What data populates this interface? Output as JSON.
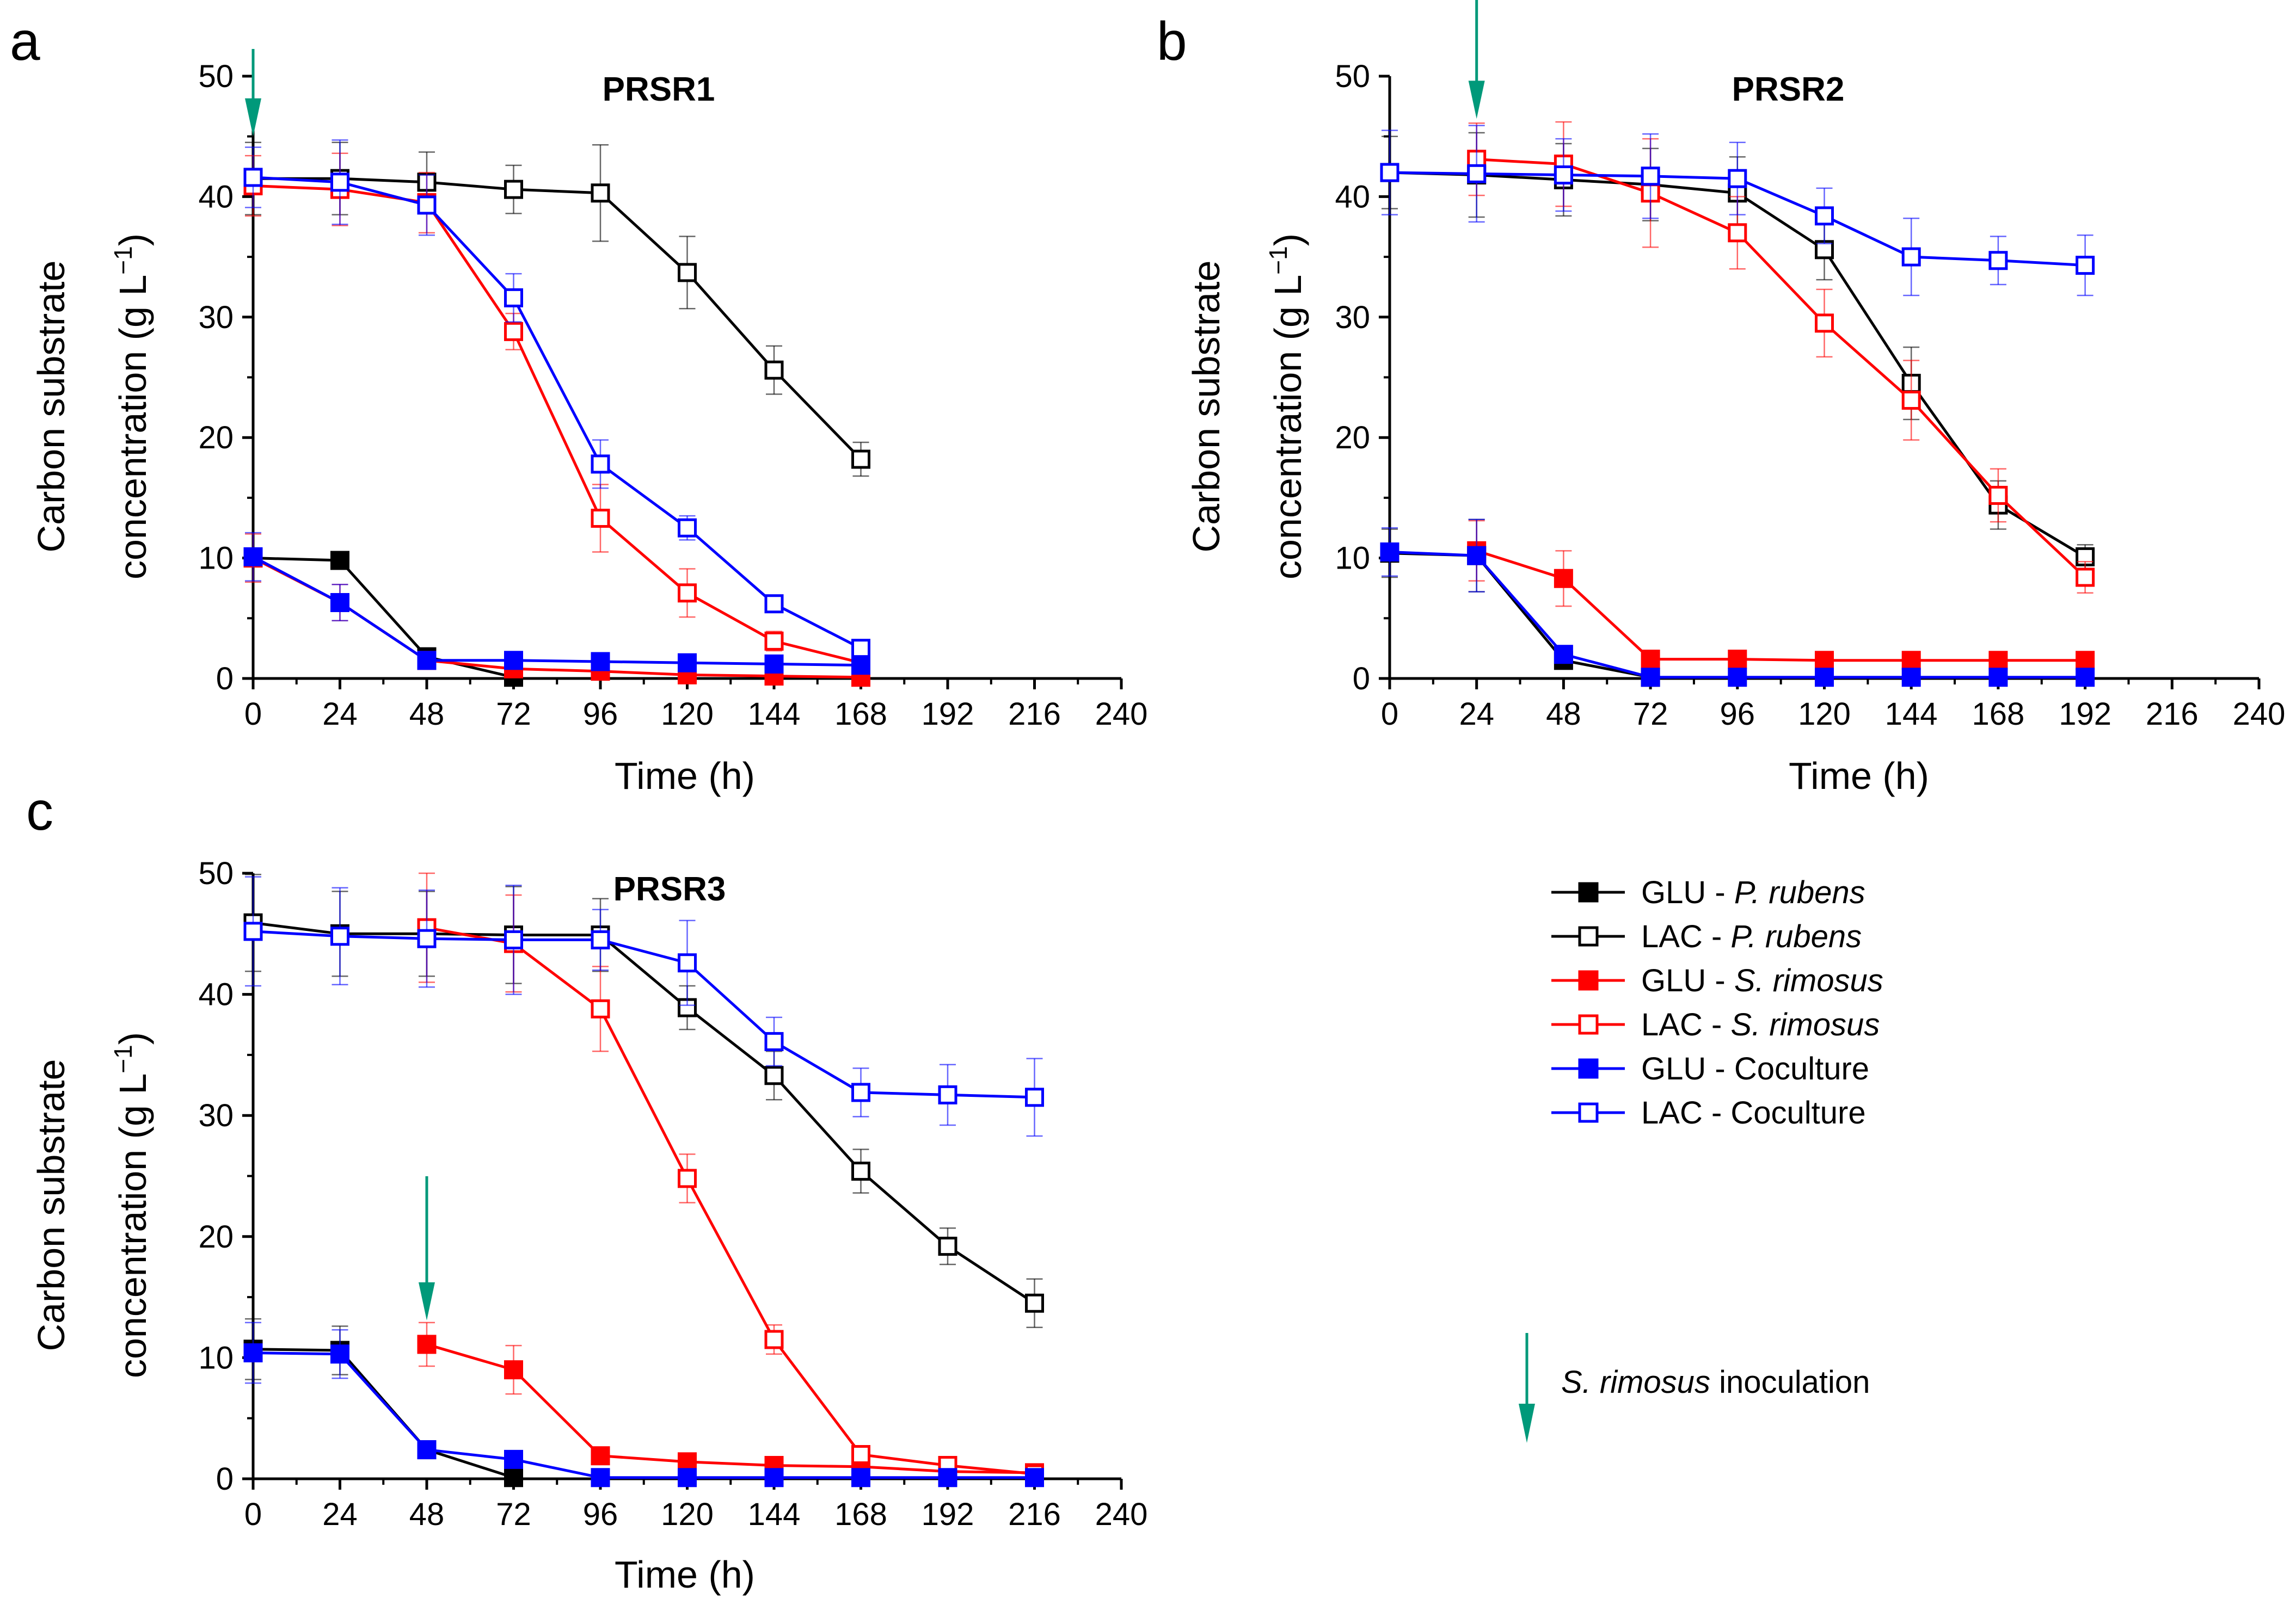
{
  "colors": {
    "p_rubens": "#000000",
    "s_rimosus": "#ff0000",
    "coculture": "#0000ff",
    "inoculation_arrow": "#00997a"
  },
  "legend": {
    "items": [
      {
        "prefix": "GLU - ",
        "name": "P. rubens",
        "italic": true,
        "filled": true,
        "color": "#000000"
      },
      {
        "prefix": "LAC - ",
        "name": "P. rubens",
        "italic": true,
        "filled": false,
        "color": "#000000"
      },
      {
        "prefix": "GLU - ",
        "name": "S. rimosus",
        "italic": true,
        "filled": true,
        "color": "#ff0000"
      },
      {
        "prefix": "LAC - ",
        "name": "S. rimosus",
        "italic": true,
        "filled": false,
        "color": "#ff0000"
      },
      {
        "prefix": "GLU - ",
        "name": "Coculture",
        "italic": false,
        "filled": true,
        "color": "#0000ff"
      },
      {
        "prefix": "LAC - ",
        "name": "Coculture",
        "italic": false,
        "filled": false,
        "color": "#0000ff"
      }
    ],
    "inoculation_italic": "S. rimosus",
    "inoculation_text": " inoculation"
  },
  "chart_data": [
    {
      "panel": "a",
      "type": "line",
      "title": "PRSR1",
      "xlabel": "Time (h)",
      "ylabel_line1": "Carbon substrate",
      "ylabel_line2_prefix": "concentration (g L",
      "ylabel_sup": "−1",
      "ylabel_suffix": ")",
      "xlim": [
        0,
        240
      ],
      "ylim": [
        0,
        50
      ],
      "xticks": [
        0,
        24,
        48,
        72,
        96,
        120,
        144,
        168,
        192,
        216,
        240
      ],
      "yticks": [
        0,
        10,
        20,
        30,
        40,
        50
      ],
      "inoculation_time": 0,
      "series": [
        {
          "name": "GLU - P. rubens",
          "color": "#000000",
          "filled": true,
          "x": [
            0,
            24,
            48,
            72
          ],
          "values": [
            10.0,
            9.8,
            1.8,
            0.1
          ],
          "errors": [
            0.6,
            0.7,
            0.3,
            0.1
          ]
        },
        {
          "name": "LAC - P. rubens",
          "color": "#000000",
          "filled": false,
          "x": [
            0,
            24,
            48,
            72,
            96,
            120,
            144,
            168
          ],
          "values": [
            41.5,
            41.5,
            41.2,
            40.6,
            40.3,
            33.7,
            25.6,
            18.2
          ],
          "errors": [
            3.0,
            3.0,
            2.5,
            2.0,
            4.0,
            3.0,
            2.0,
            1.4
          ]
        },
        {
          "name": "GLU - S. rimosus",
          "color": "#ff0000",
          "filled": true,
          "x": [
            0,
            24,
            48,
            72,
            96,
            120,
            144,
            168
          ],
          "values": [
            10.0,
            6.3,
            1.5,
            0.8,
            0.6,
            0.3,
            0.2,
            0.1
          ],
          "errors": [
            2.0,
            1.5,
            0.5,
            0.3,
            0.2,
            0.1,
            0.1,
            0.1
          ]
        },
        {
          "name": "LAC - S. rimosus",
          "color": "#ff0000",
          "filled": false,
          "x": [
            0,
            24,
            48,
            72,
            96,
            120,
            144,
            168
          ],
          "values": [
            40.9,
            40.6,
            39.5,
            28.8,
            13.3,
            7.1,
            3.1,
            1.3
          ],
          "errors": [
            2.5,
            3.0,
            2.5,
            1.5,
            2.8,
            2.0,
            0.8,
            0.4
          ]
        },
        {
          "name": "GLU - Coculture",
          "color": "#0000ff",
          "filled": true,
          "x": [
            0,
            24,
            48,
            72,
            96,
            120,
            144,
            168
          ],
          "values": [
            10.1,
            6.3,
            1.5,
            1.5,
            1.4,
            1.3,
            1.2,
            1.1
          ],
          "errors": [
            2.0,
            1.5,
            0.3,
            0.3,
            0.3,
            0.3,
            0.3,
            0.3
          ]
        },
        {
          "name": "LAC - Coculture",
          "color": "#0000ff",
          "filled": false,
          "x": [
            0,
            24,
            48,
            72,
            96,
            120,
            144,
            168
          ],
          "values": [
            41.6,
            41.2,
            39.3,
            31.6,
            17.8,
            12.5,
            6.2,
            2.5
          ],
          "errors": [
            2.5,
            3.5,
            2.5,
            2.0,
            2.0,
            1.0,
            0.5,
            0.3
          ]
        }
      ]
    },
    {
      "panel": "b",
      "type": "line",
      "title": "PRSR2",
      "xlabel": "Time (h)",
      "ylabel_line1": "Carbon substrate",
      "ylabel_line2_prefix": "concentration (g L",
      "ylabel_sup": "−1",
      "ylabel_suffix": ")",
      "xlim": [
        0,
        240
      ],
      "ylim": [
        0,
        50
      ],
      "xticks": [
        0,
        24,
        48,
        72,
        96,
        120,
        144,
        168,
        192,
        216,
        240
      ],
      "yticks": [
        0,
        10,
        20,
        30,
        40,
        50
      ],
      "inoculation_time": 24,
      "series": [
        {
          "name": "GLU - P. rubens",
          "color": "#000000",
          "filled": true,
          "x": [
            0,
            24,
            48,
            72
          ],
          "values": [
            10.4,
            10.2,
            1.5,
            0.1
          ],
          "errors": [
            2.0,
            3.0,
            0.5,
            0.1
          ]
        },
        {
          "name": "LAC - P. rubens",
          "color": "#000000",
          "filled": false,
          "x": [
            0,
            24,
            48,
            72,
            96,
            120,
            144,
            168,
            192
          ],
          "values": [
            42.0,
            41.8,
            41.4,
            41.0,
            40.3,
            35.6,
            24.5,
            14.4,
            10.1
          ],
          "errors": [
            3.0,
            3.5,
            3.0,
            3.0,
            3.0,
            2.5,
            3.0,
            2.0,
            1.0
          ]
        },
        {
          "name": "GLU - S. rimosus",
          "color": "#ff0000",
          "filled": true,
          "x": [
            24,
            48,
            72,
            96,
            120,
            144,
            168,
            192
          ],
          "values": [
            10.6,
            8.3,
            1.6,
            1.6,
            1.5,
            1.5,
            1.5,
            1.5
          ],
          "errors": [
            2.5,
            2.3,
            0.4,
            0.3,
            0.3,
            0.3,
            0.3,
            0.3
          ]
        },
        {
          "name": "LAC - S. rimosus",
          "color": "#ff0000",
          "filled": false,
          "x": [
            24,
            48,
            72,
            96,
            120,
            144,
            168,
            192
          ],
          "values": [
            43.1,
            42.7,
            40.3,
            37.0,
            29.5,
            23.1,
            15.2,
            8.4
          ],
          "errors": [
            3.0,
            3.5,
            4.5,
            3.0,
            2.8,
            3.3,
            2.2,
            1.3
          ]
        },
        {
          "name": "GLU - Coculture",
          "color": "#0000ff",
          "filled": true,
          "x": [
            0,
            24,
            48,
            72,
            96,
            120,
            144,
            168,
            192
          ],
          "values": [
            10.5,
            10.2,
            2.0,
            0.1,
            0.1,
            0.1,
            0.1,
            0.1,
            0.1
          ],
          "errors": [
            2.0,
            3.0,
            0.5,
            0.1,
            0.1,
            0.1,
            0.1,
            0.1,
            0.1
          ]
        },
        {
          "name": "LAC - Coculture",
          "color": "#0000ff",
          "filled": false,
          "x": [
            0,
            24,
            48,
            72,
            96,
            120,
            144,
            168,
            192
          ],
          "values": [
            42.0,
            41.9,
            41.8,
            41.7,
            41.5,
            38.4,
            35.0,
            34.7,
            34.3
          ],
          "errors": [
            3.5,
            4.0,
            3.0,
            3.5,
            3.0,
            2.3,
            3.2,
            2.0,
            2.5
          ]
        }
      ]
    },
    {
      "panel": "c",
      "type": "line",
      "title": "PRSR3",
      "xlabel": "Time (h)",
      "ylabel_line1": "Carbon substrate",
      "ylabel_line2_prefix": "concentration (g L",
      "ylabel_sup": "−1",
      "ylabel_suffix": ")",
      "xlim": [
        0,
        240
      ],
      "ylim": [
        0,
        50
      ],
      "xticks": [
        0,
        24,
        48,
        72,
        96,
        120,
        144,
        168,
        192,
        216,
        240
      ],
      "yticks": [
        0,
        10,
        20,
        30,
        40,
        50
      ],
      "inoculation_time": 48,
      "series": [
        {
          "name": "GLU - P. rubens",
          "color": "#000000",
          "filled": true,
          "x": [
            0,
            24,
            48,
            72
          ],
          "values": [
            10.7,
            10.6,
            2.4,
            0.1
          ],
          "errors": [
            2.5,
            2.0,
            0.5,
            0.1
          ]
        },
        {
          "name": "LAC - P. rubens",
          "color": "#000000",
          "filled": false,
          "x": [
            0,
            24,
            48,
            72,
            96,
            120,
            144,
            168,
            192,
            216
          ],
          "values": [
            45.9,
            45.0,
            45.0,
            44.9,
            44.9,
            38.9,
            33.3,
            25.4,
            19.2,
            14.5
          ],
          "errors": [
            4.0,
            3.5,
            3.5,
            4.0,
            3.0,
            1.8,
            2.0,
            1.8,
            1.5,
            2.0
          ]
        },
        {
          "name": "GLU - S. rimosus",
          "color": "#ff0000",
          "filled": true,
          "x": [
            48,
            72,
            96,
            120,
            144,
            168,
            192,
            216
          ],
          "values": [
            11.1,
            9.0,
            1.9,
            1.4,
            1.1,
            1.0,
            0.6,
            0.5
          ],
          "errors": [
            1.8,
            2.0,
            0.4,
            0.3,
            0.2,
            0.2,
            0.1,
            0.1
          ]
        },
        {
          "name": "LAC - S. rimosus",
          "color": "#ff0000",
          "filled": false,
          "x": [
            48,
            72,
            96,
            120,
            144,
            168,
            192,
            216
          ],
          "values": [
            45.5,
            44.2,
            38.8,
            24.8,
            11.5,
            2.0,
            1.1,
            0.4
          ],
          "errors": [
            4.5,
            4.0,
            3.5,
            2.0,
            1.2,
            0.5,
            0.3,
            0.1
          ]
        },
        {
          "name": "GLU - Coculture",
          "color": "#0000ff",
          "filled": true,
          "x": [
            0,
            24,
            48,
            72,
            96,
            120,
            144,
            168,
            192,
            216
          ],
          "values": [
            10.4,
            10.3,
            2.4,
            1.6,
            0.1,
            0.1,
            0.1,
            0.1,
            0.1,
            0.1
          ],
          "errors": [
            2.5,
            2.0,
            0.5,
            0.3,
            0.1,
            0.1,
            0.1,
            0.1,
            0.1,
            0.1
          ]
        },
        {
          "name": "LAC - Coculture",
          "color": "#0000ff",
          "filled": false,
          "x": [
            0,
            24,
            48,
            72,
            96,
            120,
            144,
            168,
            192,
            216
          ],
          "values": [
            45.2,
            44.8,
            44.6,
            44.5,
            44.5,
            42.6,
            36.1,
            31.9,
            31.7,
            31.5
          ],
          "errors": [
            4.5,
            4.0,
            4.0,
            4.5,
            2.5,
            3.5,
            2.0,
            2.0,
            2.5,
            3.2
          ]
        }
      ]
    }
  ]
}
